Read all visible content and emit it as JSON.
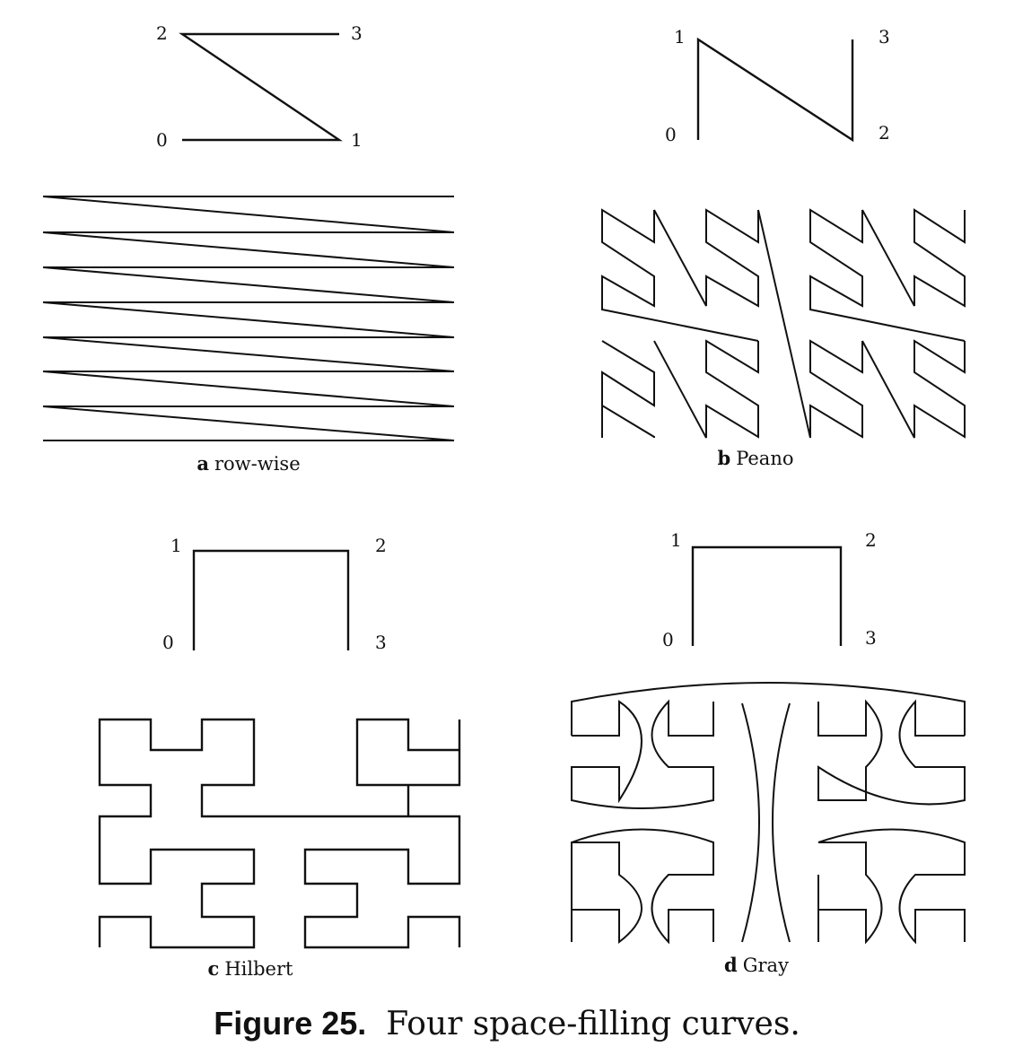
{
  "panels": {
    "a": {
      "letter": "a",
      "name": "row-wise",
      "labels": {
        "c0": "0",
        "c1": "1",
        "c2": "2",
        "c3": "3"
      }
    },
    "b": {
      "letter": "b",
      "name": "Peano",
      "labels": {
        "c0": "0",
        "c1": "1",
        "c2": "2",
        "c3": "3"
      }
    },
    "c": {
      "letter": "c",
      "name": "Hilbert",
      "labels": {
        "c0": "0",
        "c1": "1",
        "c2": "2",
        "c3": "3"
      }
    },
    "d": {
      "letter": "d",
      "name": "Gray",
      "labels": {
        "c0": "0",
        "c1": "1",
        "c2": "2",
        "c3": "3"
      }
    }
  },
  "caption": {
    "number": "Figure 25.",
    "text": "Four space-filling curves."
  }
}
